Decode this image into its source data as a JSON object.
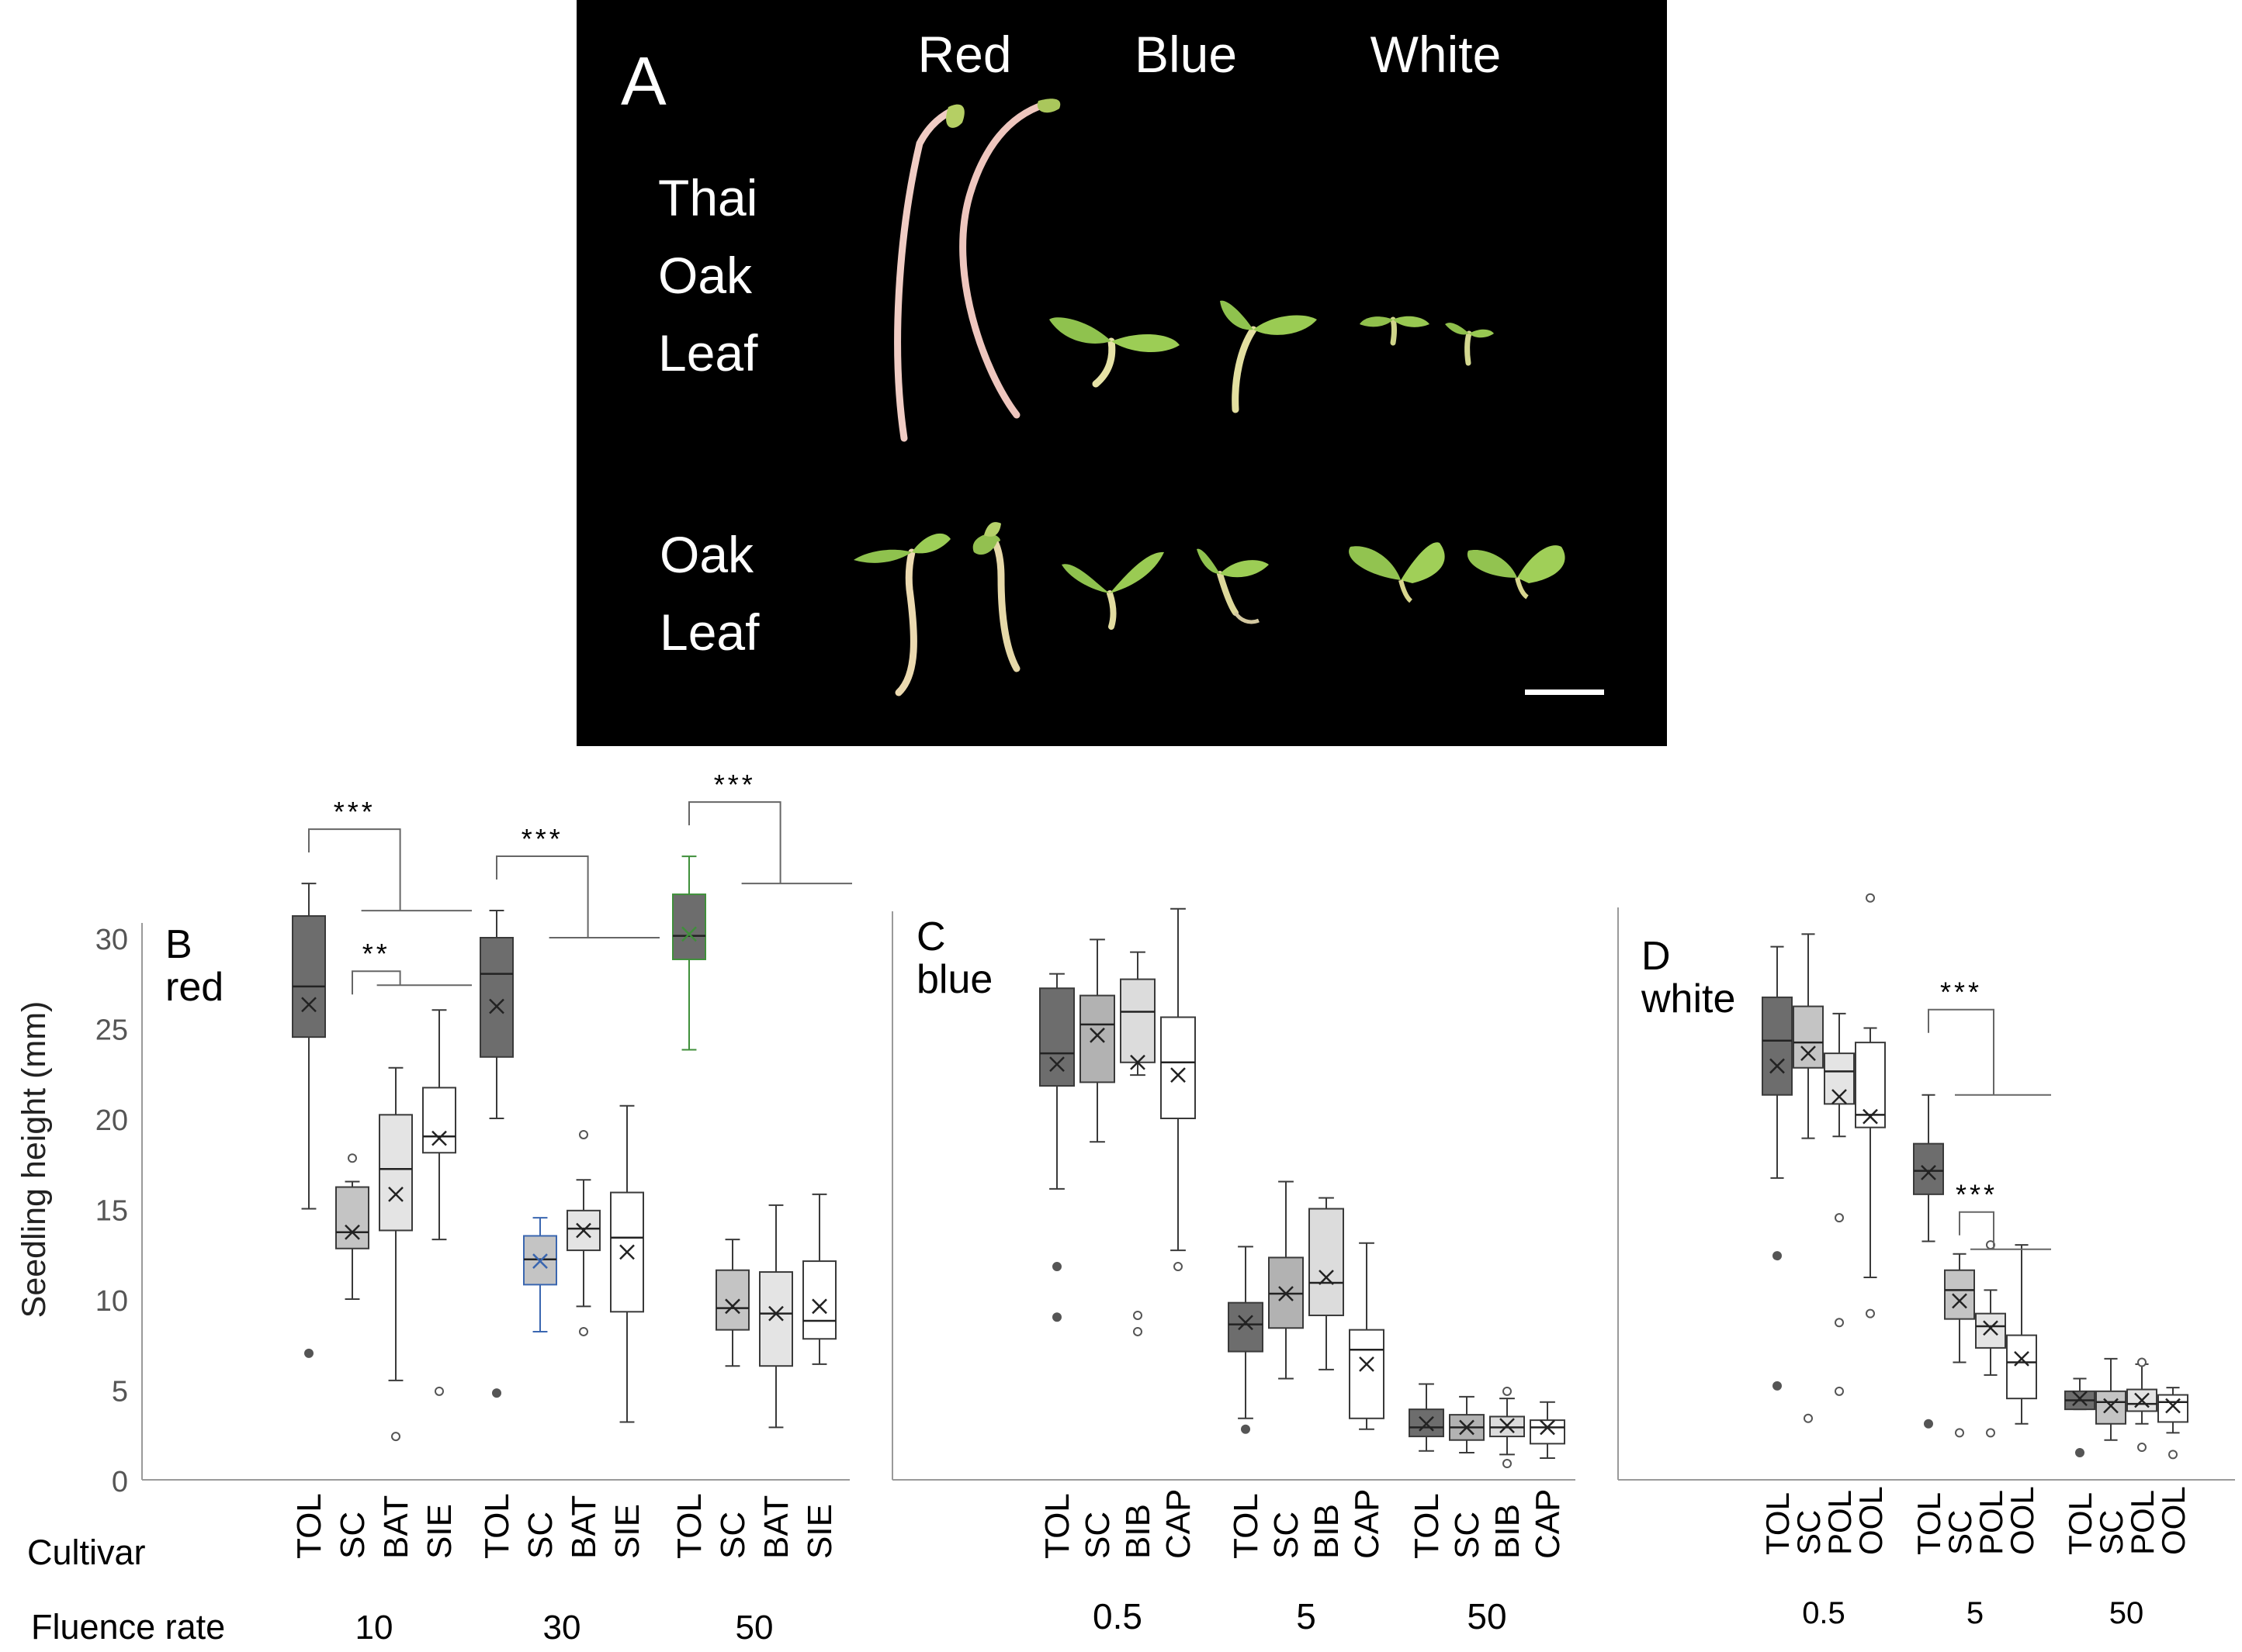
{
  "panel_a": {
    "letter": "A",
    "columns": [
      "Red",
      "Blue",
      "White"
    ],
    "rows": [
      {
        "lines": [
          "Thai",
          "Oak",
          "Leaf"
        ]
      },
      {
        "lines": [
          "Oak",
          "Leaf"
        ]
      }
    ]
  },
  "shared": {
    "ylabel": "Seedling height (mm)",
    "cultivar_label": "Cultivar",
    "fluence_label": "Fluence rate",
    "yticks": [
      0,
      5,
      10,
      15,
      20,
      25,
      30
    ]
  },
  "chart_data": [
    {
      "type": "box",
      "letter": "B",
      "title": "red",
      "ylim": [
        0,
        35
      ],
      "groups": [
        {
          "fluence": "10",
          "boxes": [
            {
              "cultivar": "TOL",
              "min": 15,
              "q1": 24.5,
              "median": 27.3,
              "q3": 31.2,
              "max": 33,
              "mean": 26.3,
              "outliers": [
                7
              ]
            },
            {
              "cultivar": "SC",
              "min": 10,
              "q1": 12.8,
              "median": 13.7,
              "q3": 16.2,
              "max": 16.5,
              "mean": 13.7,
              "outliers": [
                17.8
              ]
            },
            {
              "cultivar": "BAT",
              "min": 5.5,
              "q1": 13.8,
              "median": 17.2,
              "q3": 20.2,
              "max": 22.8,
              "mean": 15.8,
              "outliers": [
                2.4
              ]
            },
            {
              "cultivar": "SIE",
              "min": 13.3,
              "q1": 18.1,
              "median": 19,
              "q3": 21.7,
              "max": 26,
              "mean": 18.9,
              "outliers": [
                4.9
              ]
            }
          ]
        },
        {
          "fluence": "30",
          "boxes": [
            {
              "cultivar": "TOL",
              "min": 20,
              "q1": 23.4,
              "median": 28,
              "q3": 30,
              "max": 31.5,
              "mean": 26.2,
              "outliers": [
                4.8
              ]
            },
            {
              "cultivar": "SC",
              "min": 8.2,
              "q1": 10.8,
              "median": 12.2,
              "q3": 13.5,
              "max": 14.5,
              "mean": 12.1,
              "outliers": []
            },
            {
              "cultivar": "BAT",
              "min": 9.6,
              "q1": 12.7,
              "median": 13.9,
              "q3": 14.9,
              "max": 16.6,
              "mean": 13.8,
              "outliers": [
                8.2,
                19.1
              ]
            },
            {
              "cultivar": "SIE",
              "min": 3.2,
              "q1": 9.3,
              "median": 13.4,
              "q3": 15.9,
              "max": 20.7,
              "mean": 12.6,
              "outliers": []
            }
          ]
        },
        {
          "fluence": "50",
          "boxes": [
            {
              "cultivar": "TOL",
              "min": 23.8,
              "q1": 28.8,
              "median": 30.1,
              "q3": 32.4,
              "max": 34.5,
              "mean": 30.2,
              "outliers": []
            },
            {
              "cultivar": "SC",
              "min": 6.3,
              "q1": 8.3,
              "median": 9.5,
              "q3": 11.6,
              "max": 13.3,
              "mean": 9.6,
              "outliers": []
            },
            {
              "cultivar": "BAT",
              "min": 2.9,
              "q1": 6.3,
              "median": 9.2,
              "q3": 11.5,
              "max": 15.2,
              "mean": 9.2,
              "outliers": []
            },
            {
              "cultivar": "SIE",
              "min": 6.4,
              "q1": 7.8,
              "median": 8.8,
              "q3": 12.1,
              "max": 15.8,
              "mean": 9.6,
              "outliers": []
            }
          ]
        }
      ],
      "significance": [
        {
          "label": "***",
          "group": 0
        },
        {
          "label": "**",
          "group": 0
        },
        {
          "label": "***",
          "group": 1
        },
        {
          "label": "***",
          "group": 2
        }
      ]
    },
    {
      "type": "box",
      "letter": "C",
      "title": "blue",
      "ylim": [
        0,
        35
      ],
      "groups": [
        {
          "fluence": "0.5",
          "boxes": [
            {
              "cultivar": "TOL",
              "min": 16.1,
              "q1": 21.8,
              "median": 23.6,
              "q3": 27.2,
              "max": 28,
              "mean": 23,
              "outliers": [
                9,
                11.8
              ]
            },
            {
              "cultivar": "SC",
              "min": 18.7,
              "q1": 22,
              "median": 25.2,
              "q3": 26.8,
              "max": 29.9,
              "mean": 24.6,
              "outliers": []
            },
            {
              "cultivar": "BIB",
              "min": 22.4,
              "q1": 23.1,
              "median": 25.9,
              "q3": 27.7,
              "max": 29.2,
              "mean": 23.1,
              "outliers": [
                8.2,
                9.1
              ]
            },
            {
              "cultivar": "CAP",
              "min": 12.7,
              "q1": 20,
              "median": 23.1,
              "q3": 25.6,
              "max": 31.6,
              "mean": 22.4,
              "outliers": [
                11.8
              ]
            }
          ]
        },
        {
          "fluence": "5",
          "boxes": [
            {
              "cultivar": "TOL",
              "min": 3.4,
              "q1": 7.1,
              "median": 8.6,
              "q3": 9.8,
              "max": 12.9,
              "mean": 8.7,
              "outliers": [
                2.8
              ]
            },
            {
              "cultivar": "SC",
              "min": 5.6,
              "q1": 8.4,
              "median": 10.3,
              "q3": 12.3,
              "max": 16.5,
              "mean": 10.3,
              "outliers": []
            },
            {
              "cultivar": "BIB",
              "min": 6.1,
              "q1": 9.1,
              "median": 10.9,
              "q3": 15,
              "max": 15.6,
              "mean": 11.2,
              "outliers": []
            },
            {
              "cultivar": "CAP",
              "min": 2.8,
              "q1": 3.4,
              "median": 7.2,
              "q3": 8.3,
              "max": 13.1,
              "mean": 6.4,
              "outliers": []
            }
          ]
        },
        {
          "fluence": "50",
          "boxes": [
            {
              "cultivar": "TOL",
              "min": 1.6,
              "q1": 2.4,
              "median": 2.9,
              "q3": 3.9,
              "max": 5.3,
              "mean": 3.1,
              "outliers": []
            },
            {
              "cultivar": "SC",
              "min": 1.5,
              "q1": 2.2,
              "median": 2.9,
              "q3": 3.6,
              "max": 4.6,
              "mean": 2.9,
              "outliers": []
            },
            {
              "cultivar": "BIB",
              "min": 1.4,
              "q1": 2.4,
              "median": 2.9,
              "q3": 3.5,
              "max": 4.5,
              "mean": 3,
              "outliers": [
                0.9,
                4.9
              ]
            },
            {
              "cultivar": "CAP",
              "min": 1.2,
              "q1": 2,
              "median": 2.9,
              "q3": 3.3,
              "max": 4.3,
              "mean": 2.9,
              "outliers": []
            }
          ]
        }
      ],
      "significance": []
    },
    {
      "type": "box",
      "letter": "D",
      "title": "white",
      "ylim": [
        0,
        35
      ],
      "groups": [
        {
          "fluence": "0.5",
          "boxes": [
            {
              "cultivar": "TOL",
              "min": 16.7,
              "q1": 21.3,
              "median": 24.3,
              "q3": 26.7,
              "max": 29.5,
              "mean": 22.9,
              "outliers": [
                5.2,
                12.4
              ]
            },
            {
              "cultivar": "SC",
              "min": 18.9,
              "q1": 22.8,
              "median": 24.2,
              "q3": 26.2,
              "max": 30.2,
              "mean": 23.6,
              "outliers": [
                3.4
              ]
            },
            {
              "cultivar": "POL",
              "min": 19,
              "q1": 20.8,
              "median": 22.6,
              "q3": 23.6,
              "max": 25.8,
              "mean": 21.2,
              "outliers": [
                4.9,
                8.7,
                14.5
              ]
            },
            {
              "cultivar": "OOL",
              "min": 11.2,
              "q1": 19.5,
              "median": 20.2,
              "q3": 24.2,
              "max": 25,
              "mean": 20.1,
              "outliers": [
                9.2,
                32.2
              ]
            }
          ]
        },
        {
          "fluence": "5",
          "boxes": [
            {
              "cultivar": "TOL",
              "min": 13.2,
              "q1": 15.8,
              "median": 17.1,
              "q3": 18.6,
              "max": 21.3,
              "mean": 17,
              "outliers": [
                3.1
              ]
            },
            {
              "cultivar": "SC",
              "min": 6.5,
              "q1": 8.9,
              "median": 10.5,
              "q3": 11.6,
              "max": 12.5,
              "mean": 9.9,
              "outliers": [
                2.6
              ]
            },
            {
              "cultivar": "POL",
              "min": 5.8,
              "q1": 7.3,
              "median": 8.5,
              "q3": 9.2,
              "max": 10.5,
              "mean": 8.4,
              "outliers": [
                2.6,
                13
              ]
            },
            {
              "cultivar": "OOL",
              "min": 3.1,
              "q1": 4.5,
              "median": 6.5,
              "q3": 8,
              "max": 13,
              "mean": 6.7,
              "outliers": []
            }
          ]
        },
        {
          "fluence": "50",
          "boxes": [
            {
              "cultivar": "TOL",
              "min": 3.9,
              "q1": 3.9,
              "median": 4.4,
              "q3": 4.9,
              "max": 5.6,
              "mean": 4.5,
              "outliers": [
                1.5
              ]
            },
            {
              "cultivar": "SC",
              "min": 2.2,
              "q1": 3.1,
              "median": 4.3,
              "q3": 4.9,
              "max": 6.7,
              "mean": 4.1,
              "outliers": []
            },
            {
              "cultivar": "POL",
              "min": 3.1,
              "q1": 3.8,
              "median": 4.2,
              "q3": 5,
              "max": 6.4,
              "mean": 4.4,
              "outliers": [
                1.8,
                6.5
              ]
            },
            {
              "cultivar": "OOL",
              "min": 2.6,
              "q1": 3.2,
              "median": 4.3,
              "q3": 4.7,
              "max": 5.1,
              "mean": 4.1,
              "outliers": [
                1.4
              ]
            }
          ]
        }
      ],
      "significance": [
        {
          "label": "***",
          "group": 1
        },
        {
          "label": "***",
          "group": 1
        }
      ]
    }
  ]
}
